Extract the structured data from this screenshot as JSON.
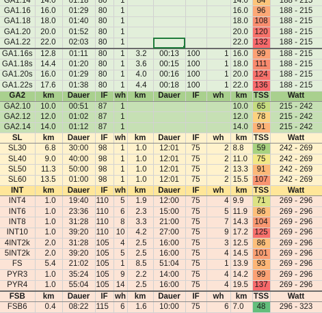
{
  "colors": {
    "ga_bg": "#e2efda",
    "ga_header": "#a9d08e",
    "ga2_bg": "#c6e0b4",
    "sl_bg": "#fff2cc",
    "int_bg": "#fce4d6",
    "int_header": "#ffe699",
    "fsb_bg": "#fce4d6"
  },
  "sections": [
    {
      "name": "ga1",
      "bg": "#e2efda",
      "rows": [
        {
          "cells": [
            "GA1.14",
            "14.0",
            "01:18",
            "80",
            "1",
            "",
            "",
            "",
            "",
            "14.0",
            "84",
            "188 - 215"
          ],
          "tss_bg": "#fcc47a"
        },
        {
          "cells": [
            "GA1.16",
            "16.0",
            "01:29",
            "80",
            "1",
            "",
            "",
            "",
            "",
            "16.0",
            "96",
            "188 - 215"
          ],
          "tss_bg": "#fca876"
        },
        {
          "cells": [
            "GA1.18",
            "18.0",
            "01:40",
            "80",
            "1",
            "",
            "",
            "",
            "",
            "18.0",
            "108",
            "188 - 215"
          ],
          "tss_bg": "#f98e6f"
        },
        {
          "cells": [
            "GA1.20",
            "20.0",
            "01:52",
            "80",
            "1",
            "",
            "",
            "",
            "",
            "20.0",
            "120",
            "188 - 215"
          ],
          "tss_bg": "#f8736b"
        },
        {
          "cells": [
            "GA1.22",
            "22.0",
            "02:03",
            "80",
            "1",
            "",
            "",
            "",
            "",
            "22.0",
            "132",
            "188 - 215"
          ],
          "tss_bg": "#f8696b",
          "sel": true,
          "thick": true
        },
        {
          "cells": [
            "GA1.16s",
            "12.8",
            "01:11",
            "80",
            "1",
            "3.2",
            "00:13",
            "100",
            "1",
            "16.0",
            "99",
            "188 - 215"
          ],
          "tss_bg": "#fca174"
        },
        {
          "cells": [
            "GA1.18s",
            "14.4",
            "01:20",
            "80",
            "1",
            "3.6",
            "00:15",
            "100",
            "1",
            "18.0",
            "111",
            "188 - 215"
          ],
          "tss_bg": "#f98a6e"
        },
        {
          "cells": [
            "GA1.20s",
            "16.0",
            "01:29",
            "80",
            "1",
            "4.0",
            "00:16",
            "100",
            "1",
            "20.0",
            "124",
            "188 - 215"
          ],
          "tss_bg": "#f8716b"
        },
        {
          "cells": [
            "GA1.22s",
            "17.6",
            "01:38",
            "80",
            "1",
            "4.4",
            "00:18",
            "100",
            "1",
            "22.0",
            "136",
            "188 - 215"
          ],
          "tss_bg": "#f8696b"
        }
      ]
    },
    {
      "name": "ga2",
      "bg": "#c6e0b4",
      "header": {
        "cells": [
          "GA2",
          "km",
          "Dauer",
          "IF",
          "wh",
          "km",
          "Dauer",
          "IF",
          "wh",
          "km",
          "TSS",
          "Watt"
        ],
        "bg": "#a9d08e"
      },
      "rows": [
        {
          "cells": [
            "GA2.10",
            "10.0",
            "00:51",
            "87",
            "1",
            "",
            "",
            "",
            "",
            "10.0",
            "65",
            "215 - 242"
          ],
          "tss_bg": "#c6dc80"
        },
        {
          "cells": [
            "GA2.12",
            "12.0",
            "01:02",
            "87",
            "1",
            "",
            "",
            "",
            "",
            "12.0",
            "78",
            "215 - 242"
          ],
          "tss_bg": "#fcd27f"
        },
        {
          "cells": [
            "GA2.14",
            "14.0",
            "01:12",
            "87",
            "1",
            "",
            "",
            "",
            "",
            "14.0",
            "91",
            "215 - 242"
          ],
          "tss_bg": "#fdb377"
        }
      ]
    },
    {
      "name": "sl",
      "bg": "#fff2cc",
      "header": {
        "cells": [
          "SL",
          "km",
          "Dauer",
          "IF",
          "wh",
          "km",
          "Dauer",
          "IF",
          "wh",
          "km",
          "TSS",
          "Watt"
        ],
        "bg": "#fff2cc"
      },
      "rows": [
        {
          "cells": [
            "SL30",
            "6.8",
            "30:00",
            "98",
            "1",
            "1.0",
            "12:01",
            "75",
            "2",
            "8.8",
            "59",
            "242 - 269"
          ],
          "tss_bg": "#a8d27f"
        },
        {
          "cells": [
            "SL40",
            "9.0",
            "40:00",
            "98",
            "1",
            "1.0",
            "12:01",
            "75",
            "2",
            "11.0",
            "75",
            "242 - 269"
          ],
          "tss_bg": "#f3e884"
        },
        {
          "cells": [
            "SL50",
            "11.3",
            "50:00",
            "98",
            "1",
            "1.0",
            "12:01",
            "75",
            "2",
            "13.3",
            "91",
            "242 - 269"
          ],
          "tss_bg": "#fdb878"
        },
        {
          "cells": [
            "SL60",
            "13.5",
            "01:00",
            "98",
            "1",
            "1.0",
            "12:01",
            "75",
            "2",
            "15.5",
            "107",
            "242 - 269"
          ],
          "tss_bg": "#fa9470"
        }
      ]
    },
    {
      "name": "int",
      "bg": "#fce4d6",
      "header": {
        "cells": [
          "INT",
          "km",
          "Dauer",
          "IF",
          "wh",
          "km",
          "Dauer",
          "IF",
          "wh",
          "km",
          "TSS",
          "Watt"
        ],
        "bg": "#ffe699"
      },
      "rows": [
        {
          "cells": [
            "INT4",
            "1.0",
            "19:40",
            "110",
            "5",
            "1.9",
            "12:00",
            "75",
            "4",
            "9.9",
            "71",
            "269 - 296"
          ],
          "tss_bg": "#dce283"
        },
        {
          "cells": [
            "INT6",
            "1.0",
            "23:36",
            "110",
            "6",
            "2.3",
            "15:00",
            "75",
            "5",
            "11.9",
            "86",
            "269 - 296"
          ],
          "tss_bg": "#fdbf7a"
        },
        {
          "cells": [
            "INT8",
            "1.0",
            "31:28",
            "110",
            "8",
            "3.3",
            "21:00",
            "75",
            "7",
            "14.3",
            "104",
            "269 - 296"
          ],
          "tss_bg": "#fa9872"
        },
        {
          "cells": [
            "INT10",
            "1.0",
            "39:20",
            "110",
            "10",
            "4.2",
            "27:00",
            "75",
            "9",
            "17.2",
            "125",
            "269 - 296"
          ],
          "tss_bg": "#f8706b"
        },
        {
          "cells": [
            "4INT2k",
            "2.0",
            "31:28",
            "105",
            "4",
            "2.5",
            "16:00",
            "75",
            "3",
            "12.5",
            "86",
            "269 - 296"
          ],
          "tss_bg": "#fdbf7a"
        },
        {
          "cells": [
            "5INT2k",
            "2.0",
            "39:20",
            "105",
            "5",
            "2.5",
            "16:00",
            "75",
            "4",
            "14.5",
            "101",
            "269 - 296"
          ],
          "tss_bg": "#fa9f73"
        },
        {
          "cells": [
            "FS",
            "5.4",
            "21:02",
            "105",
            "1",
            "8.5",
            "51:04",
            "75",
            "1",
            "13.9",
            "93",
            "269 - 296"
          ],
          "tss_bg": "#fdb677"
        },
        {
          "cells": [
            "PYR3",
            "1.0",
            "35:24",
            "105",
            "9",
            "2.2",
            "14:00",
            "75",
            "4",
            "14.2",
            "99",
            "269 - 296"
          ],
          "tss_bg": "#fca174"
        },
        {
          "cells": [
            "PYR4",
            "1.0",
            "55:04",
            "105",
            "14",
            "2.5",
            "16:00",
            "75",
            "4",
            "19.5",
            "137",
            "269 - 296"
          ],
          "tss_bg": "#f8696b",
          "thick": true
        }
      ]
    },
    {
      "name": "fsb",
      "bg": "#fce4d6",
      "header": {
        "cells": [
          "FSB",
          "km",
          "Dauer",
          "IF",
          "wh",
          "km",
          "Dauer",
          "IF",
          "wh",
          "km",
          "TSS",
          "Watt"
        ],
        "bg": "#fce4d6"
      },
      "rows": [
        {
          "cells": [
            "FSB6",
            "0.4",
            "08:22",
            "115",
            "6",
            "1.6",
            "10:00",
            "75",
            "6",
            "7.0",
            "48",
            "296 - 323"
          ],
          "tss_bg": "#63be7b"
        }
      ]
    }
  ]
}
